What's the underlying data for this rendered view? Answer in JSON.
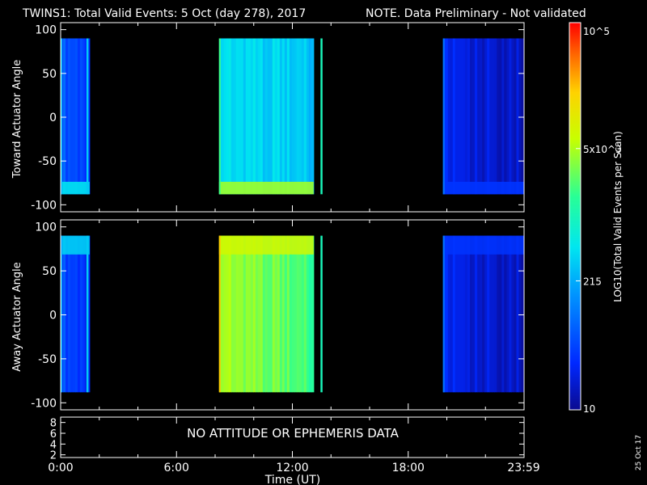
{
  "header": {
    "title": "TWINS1: Total Valid Events:  5 Oct (day 278), 2017",
    "warning": "NOTE. Data Preliminary - Not validated",
    "warning_color": "#ff2020"
  },
  "side_date": "25 Oct 17",
  "no_data_message": "NO ATTITUDE OR EPHEMERIS DATA",
  "colors": {
    "background": "#000000",
    "axes": "#ffffff"
  },
  "chart_data": [
    {
      "type": "heatmap",
      "panel": "toward",
      "ylabel": "Toward Actuator Angle",
      "ylim": [
        -108,
        108
      ],
      "yticks": [
        100,
        50,
        0,
        -50,
        -100
      ],
      "xlim": [
        0,
        24
      ],
      "data_extent_deg": [
        -88,
        90
      ],
      "colorscale": "log",
      "segments": [
        {
          "start_h": 0.0,
          "end_h": 1.5,
          "level": 0.2,
          "bottom_level": 0.42
        },
        {
          "start_h": 8.2,
          "end_h": 13.1,
          "level": 0.42,
          "bottom_level": 0.66
        },
        {
          "start_h": 19.8,
          "end_h": 23.98,
          "level": 0.1,
          "bottom_level": 0.14
        }
      ],
      "spikes": [
        {
          "hour": 1.38,
          "level": 0.38
        },
        {
          "hour": 13.5,
          "level": 0.5
        }
      ]
    },
    {
      "type": "heatmap",
      "panel": "away",
      "ylabel": "Away Actuator Angle",
      "ylim": [
        -108,
        108
      ],
      "yticks": [
        100,
        50,
        0,
        -50,
        -100
      ],
      "xlim": [
        0,
        24
      ],
      "data_extent_deg": [
        -88,
        90
      ],
      "colorscale": "log",
      "segments": [
        {
          "start_h": 0.0,
          "end_h": 1.5,
          "level": 0.18,
          "top_level": 0.4
        },
        {
          "start_h": 8.2,
          "end_h": 13.1,
          "level": 0.68,
          "top_level": 0.72
        },
        {
          "start_h": 19.8,
          "end_h": 23.98,
          "level": 0.1,
          "top_level": 0.14
        }
      ],
      "spikes": [
        {
          "hour": 1.38,
          "level": 0.38
        },
        {
          "hour": 13.5,
          "level": 0.5
        }
      ]
    },
    {
      "type": "line",
      "panel": "ephemeris",
      "ylim": [
        1.5,
        9
      ],
      "yticks": [
        8,
        6,
        4,
        2
      ],
      "xlim": [
        0,
        24
      ],
      "xlabel": "Time (UT)",
      "xticks": [
        {
          "value": 0,
          "label": "0:00"
        },
        {
          "value": 6,
          "label": "6:00"
        },
        {
          "value": 12,
          "label": "12:00"
        },
        {
          "value": 18,
          "label": "18:00"
        },
        {
          "value": 23.98,
          "label": "23:59"
        }
      ]
    },
    {
      "type": "colorbar",
      "label": "LOG10(Total Valid Events per Scan)",
      "scale": "log",
      "range": [
        10,
        100000
      ],
      "ticks": [
        {
          "value": 100000,
          "label": "10^5"
        },
        {
          "value": 5000,
          "label": "5x10^3"
        },
        {
          "value": 215,
          "label": "215"
        },
        {
          "value": 10,
          "label": "10"
        }
      ]
    }
  ]
}
